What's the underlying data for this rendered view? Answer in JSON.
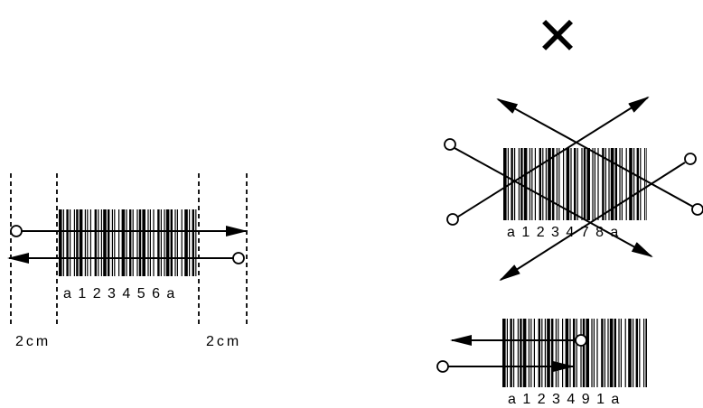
{
  "correct_example": {
    "barcode_text": "a 1 2 3 4 5 6 a",
    "margin_left_label": "2cm",
    "margin_right_label": "2cm"
  },
  "incorrect_example": {
    "mark": "✕",
    "angled_barcode_text": "a 1 2 3 4 7 8 a",
    "partial_barcode_text": "a 1 2 3 4 9 1 a"
  },
  "colors": {
    "ink": "#000000",
    "background": "#ffffff"
  }
}
